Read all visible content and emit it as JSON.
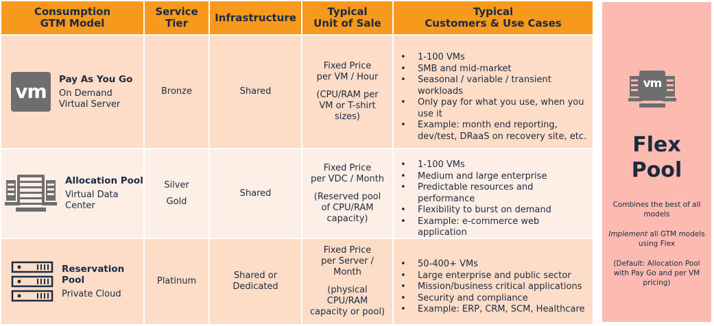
{
  "headers": [
    "Consumption\nGTM Model",
    "Service\nTier",
    "Infrastructure",
    "Typical\nUnit of Sale",
    "Typical\nCustomers & Use Cases"
  ],
  "rows": [
    {
      "icon": "vm-logo-icon",
      "logo_text": "vm",
      "name": "Pay As You Go",
      "sub": "On Demand\nVirtual Server",
      "tier": "Bronze",
      "infra": "Shared",
      "unit": "Fixed Price\nper VM / Hour",
      "unit_note": "(CPU/RAM per\nVM or T-shirt\nsizes)",
      "uses": [
        "1-100 VMs",
        "SMB and mid-market",
        "Seasonal / variable / transient workloads",
        "Only pay for what you use, when you use it",
        "Example: month end reporting, dev/test, DRaaS on recovery site, etc."
      ]
    },
    {
      "icon": "server-rack-icon",
      "name": "Allocation Pool",
      "sub": "Virtual Data\nCenter",
      "tier": "Silver\n\nGold",
      "infra": "Shared",
      "unit": "Fixed Price\nper VDC / Month",
      "unit_note": "(Reserved pool\nof CPU/RAM\ncapacity)",
      "uses": [
        "1-100 VMs",
        "Medium and large enterprise",
        "Predictable resources and performance",
        "Flexibility to burst on demand",
        "Example: e-commerce web application"
      ]
    },
    {
      "icon": "server-stack-icon",
      "name": "Reservation\nPool",
      "sub": "Private Cloud",
      "tier": "Platinum",
      "infra": "Shared or\nDedicated",
      "unit": "Fixed Price\nper Server /\nMonth",
      "unit_note": "(physical\nCPU/RAM\ncapacity or pool)",
      "uses": [
        "50-400+ VMs",
        "Large enterprise and public sector",
        "Mission/business critical applications",
        "Security and compliance",
        "Example: ERP, CRM, SCM, Healthcare"
      ]
    }
  ],
  "flex": {
    "logo_text": "vm",
    "title": "Flex\nPool",
    "desc1": "Combines the best of all models",
    "desc2_em": "Implement",
    "desc2_rest": " all GTM models using Flex",
    "desc3": "(Default: Allocation Pool with Pay Go and per VM pricing)"
  },
  "colors": {
    "header": "#f7991c",
    "row_dark": "#fddcc8",
    "row_light": "#fdeee6",
    "flex": "#fdbab0",
    "text": "#1b2a3f"
  }
}
